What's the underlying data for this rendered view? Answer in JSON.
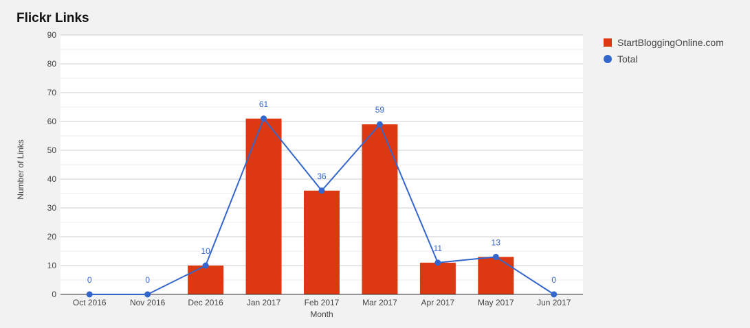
{
  "chart_data": {
    "type": "bar",
    "title": "Flickr Links",
    "xlabel": "Month",
    "ylabel": "Number of Links",
    "categories": [
      "Oct 2016",
      "Nov 2016",
      "Dec 2016",
      "Jan 2017",
      "Feb 2017",
      "Mar 2017",
      "Apr 2017",
      "May 2017",
      "Jun 2017"
    ],
    "series": [
      {
        "name": "StartBloggingOnline.com",
        "type": "bar",
        "color": "#dc3912",
        "values": [
          0,
          0,
          10,
          61,
          36,
          59,
          11,
          13,
          0
        ]
      },
      {
        "name": "Total",
        "type": "line",
        "color": "#3366cc",
        "values": [
          0,
          0,
          10,
          61,
          36,
          59,
          11,
          13,
          0
        ]
      }
    ],
    "ylim": [
      0,
      90
    ],
    "yticks": [
      0,
      10,
      20,
      30,
      40,
      50,
      60,
      70,
      80,
      90
    ],
    "grid": true,
    "legend_position": "right"
  }
}
